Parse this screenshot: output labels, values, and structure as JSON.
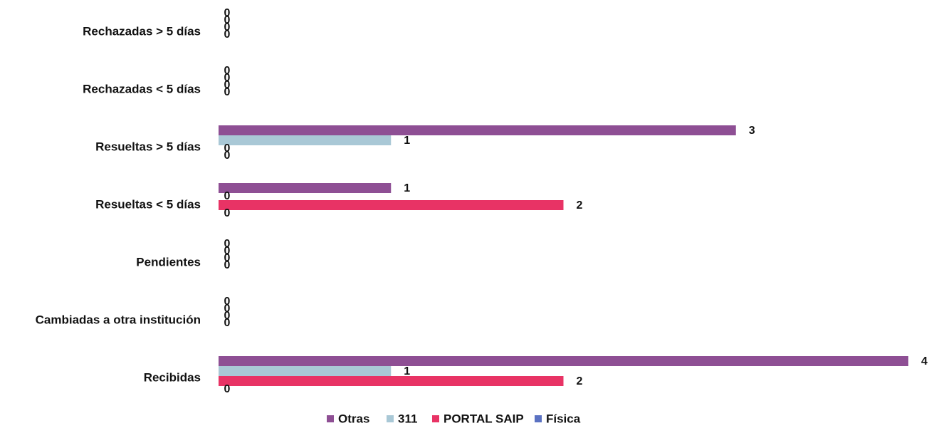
{
  "chart_data": {
    "type": "bar",
    "orientation": "horizontal",
    "categories": [
      "Rechazadas  > 5 días",
      "Rechazadas  < 5 días",
      "Resueltas > 5 días",
      "Resueltas < 5 días",
      "Pendientes",
      "Cambiadas a otra institución",
      "Recibidas"
    ],
    "series": [
      {
        "name": "Otras",
        "color": "#8e4f94",
        "values": [
          0,
          0,
          3,
          1,
          0,
          0,
          4
        ]
      },
      {
        "name": "311",
        "color": "#a9c8d6",
        "values": [
          0,
          0,
          1,
          0,
          0,
          0,
          1
        ]
      },
      {
        "name": "PORTAL SAIP",
        "color": "#e83365",
        "values": [
          0,
          0,
          0,
          2,
          0,
          0,
          2
        ]
      },
      {
        "name": "Física",
        "color": "#5b72c2",
        "values": [
          0,
          0,
          0,
          0,
          0,
          0,
          0
        ]
      }
    ],
    "title": "",
    "xlabel": "",
    "ylabel": "",
    "xlim": [
      0,
      4
    ],
    "grid": false,
    "legend": "bottom-center"
  }
}
